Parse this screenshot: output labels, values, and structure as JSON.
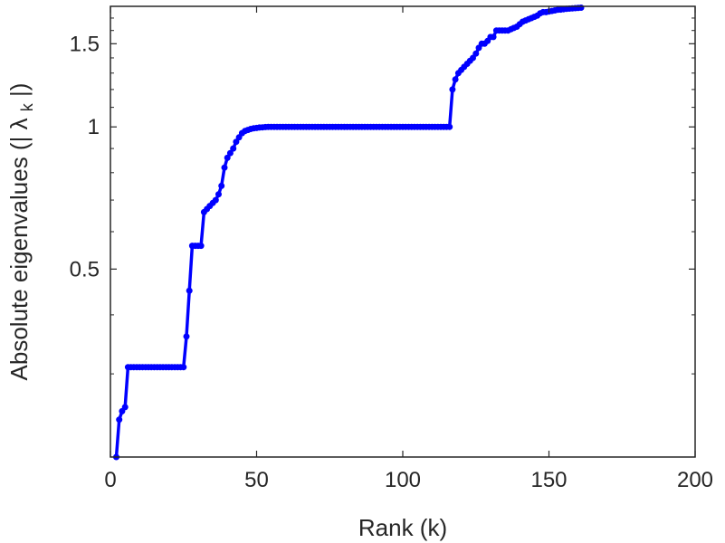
{
  "chart_data": {
    "type": "line",
    "xlabel": "Rank (k)",
    "ylabel": "Absolute eigenvalues (|",
    "ylabel_symbol": "λ",
    "ylabel_subscript": "k",
    "ylabel_suffix": "|)",
    "xlim": [
      0,
      200
    ],
    "ylim": [
      0.2,
      1.8
    ],
    "y_scale": "log",
    "grid": false,
    "legend": "none",
    "x_ticks": [
      0,
      50,
      100,
      150,
      200
    ],
    "x_tick_labels": [
      "0",
      "50",
      "100",
      "150",
      "200"
    ],
    "y_ticks": [
      0.5,
      1,
      1.5
    ],
    "y_tick_labels": [
      "0.5",
      "1",
      "1.5"
    ],
    "series_color": "#0000ff",
    "series": [
      {
        "name": "",
        "x": [
          2,
          3,
          4,
          5,
          6,
          7,
          8,
          9,
          10,
          11,
          12,
          13,
          14,
          15,
          16,
          17,
          18,
          19,
          20,
          21,
          22,
          23,
          24,
          25,
          26,
          27,
          28,
          29,
          30,
          31,
          32,
          33,
          34,
          35,
          36,
          37,
          38,
          39,
          40,
          41,
          42,
          43,
          44,
          45,
          46,
          47,
          48,
          49,
          50,
          51,
          52,
          53,
          54,
          55,
          56,
          57,
          58,
          59,
          60,
          61,
          62,
          63,
          64,
          65,
          66,
          67,
          68,
          69,
          70,
          71,
          72,
          73,
          74,
          75,
          76,
          77,
          78,
          79,
          80,
          81,
          82,
          83,
          84,
          85,
          86,
          87,
          88,
          89,
          90,
          91,
          92,
          93,
          94,
          95,
          96,
          97,
          98,
          99,
          100,
          101,
          102,
          103,
          104,
          105,
          106,
          107,
          108,
          109,
          110,
          111,
          112,
          113,
          114,
          115,
          116,
          117,
          118,
          119,
          120,
          121,
          122,
          123,
          124,
          125,
          126,
          127,
          128,
          129,
          130,
          131,
          132,
          133,
          134,
          135,
          136,
          137,
          138,
          139,
          140,
          141,
          142,
          143,
          144,
          145,
          146,
          147,
          148,
          149,
          150,
          151,
          152,
          153,
          154,
          155,
          156,
          157,
          158,
          159,
          160,
          161
        ],
        "y": [
          0.2,
          0.24,
          0.25,
          0.255,
          0.31,
          0.31,
          0.31,
          0.31,
          0.31,
          0.31,
          0.31,
          0.31,
          0.31,
          0.31,
          0.31,
          0.31,
          0.31,
          0.31,
          0.31,
          0.31,
          0.31,
          0.31,
          0.31,
          0.31,
          0.36,
          0.45,
          0.56,
          0.56,
          0.56,
          0.56,
          0.66,
          0.67,
          0.68,
          0.69,
          0.7,
          0.72,
          0.75,
          0.82,
          0.86,
          0.88,
          0.9,
          0.93,
          0.95,
          0.97,
          0.98,
          0.985,
          0.99,
          0.993,
          0.995,
          0.997,
          0.998,
          0.999,
          1,
          1,
          1,
          1,
          1,
          1,
          1,
          1,
          1,
          1,
          1,
          1,
          1,
          1,
          1,
          1,
          1,
          1,
          1,
          1,
          1,
          1,
          1,
          1,
          1,
          1,
          1,
          1,
          1,
          1,
          1,
          1,
          1,
          1,
          1,
          1,
          1,
          1,
          1,
          1,
          1,
          1,
          1,
          1,
          1,
          1,
          1,
          1,
          1,
          1,
          1,
          1,
          1,
          1,
          1,
          1,
          1,
          1,
          1,
          1,
          1,
          1,
          1,
          1.2,
          1.26,
          1.3,
          1.32,
          1.34,
          1.36,
          1.38,
          1.4,
          1.43,
          1.47,
          1.5,
          1.5,
          1.52,
          1.55,
          1.55,
          1.6,
          1.6,
          1.6,
          1.6,
          1.6,
          1.61,
          1.62,
          1.63,
          1.65,
          1.67,
          1.68,
          1.69,
          1.7,
          1.71,
          1.72,
          1.74,
          1.75,
          1.75,
          1.755,
          1.76,
          1.765,
          1.77,
          1.772,
          1.775,
          1.778,
          1.78,
          1.782,
          1.784,
          1.786,
          1.788
        ]
      }
    ]
  }
}
